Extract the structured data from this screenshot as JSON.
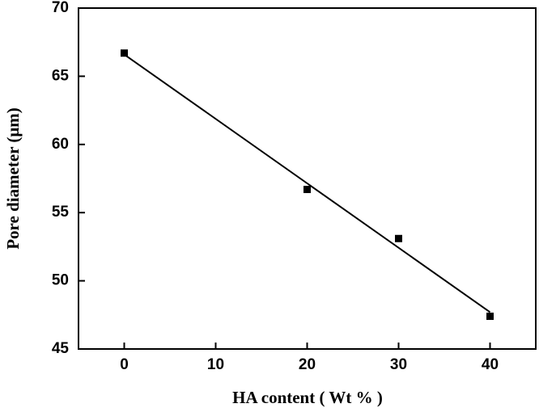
{
  "chart_data": {
    "type": "scatter",
    "xlabel": "HA content ( Wt % )",
    "ylabel": "Pore diameter (μm)",
    "series": [
      {
        "type": "scatter",
        "color": "#000000",
        "x": [
          0,
          20,
          30,
          40
        ],
        "values": [
          66.7,
          56.7,
          53.1,
          47.4
        ]
      },
      {
        "type": "line",
        "color": "#000000",
        "x": [
          0,
          40
        ],
        "values": [
          66.6,
          47.7
        ]
      }
    ],
    "xlim": [
      -5,
      45
    ],
    "xticks": [
      0,
      10,
      20,
      30,
      40
    ],
    "ylim": [
      45,
      70
    ],
    "yticks": [
      45,
      50,
      55,
      60,
      65,
      70
    ]
  }
}
